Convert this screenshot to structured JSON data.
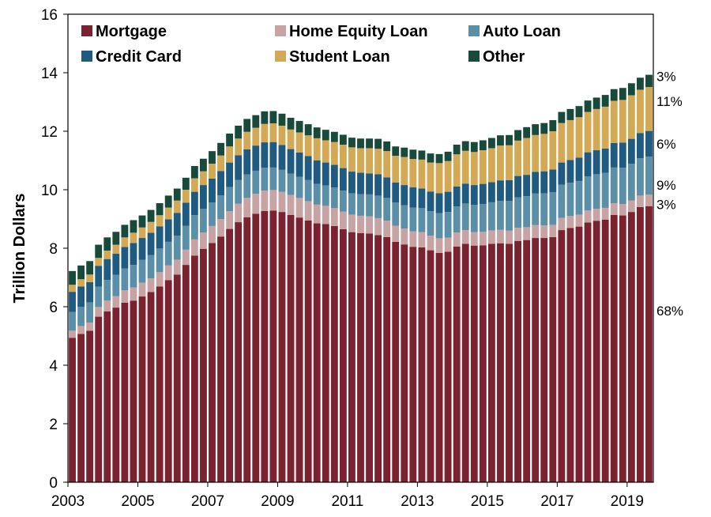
{
  "chart_data": {
    "type": "bar",
    "stacked": true,
    "ylabel": "Trillion Dollars",
    "ylim": [
      0,
      16
    ],
    "yticks": [
      0,
      2,
      4,
      6,
      8,
      10,
      12,
      14,
      16
    ],
    "xticks": [
      "2003",
      "2005",
      "2007",
      "2009",
      "2011",
      "2013",
      "2015",
      "2017",
      "2019"
    ],
    "legend_position": "top",
    "grid": false,
    "colors": {
      "Mortgage": "#7B2230",
      "Home Equity Loan": "#C8A3A3",
      "Auto Loan": "#5B8FA8",
      "Credit Card": "#1F5A80",
      "Student Loan": "#D4A955",
      "Other": "#174A3A"
    },
    "categories": [
      "2003Q1",
      "2003Q2",
      "2003Q3",
      "2003Q4",
      "2004Q1",
      "2004Q2",
      "2004Q3",
      "2004Q4",
      "2005Q1",
      "2005Q2",
      "2005Q3",
      "2005Q4",
      "2006Q1",
      "2006Q2",
      "2006Q3",
      "2006Q4",
      "2007Q1",
      "2007Q2",
      "2007Q3",
      "2007Q4",
      "2008Q1",
      "2008Q2",
      "2008Q3",
      "2008Q4",
      "2009Q1",
      "2009Q2",
      "2009Q3",
      "2009Q4",
      "2010Q1",
      "2010Q2",
      "2010Q3",
      "2010Q4",
      "2011Q1",
      "2011Q2",
      "2011Q3",
      "2011Q4",
      "2012Q1",
      "2012Q2",
      "2012Q3",
      "2012Q4",
      "2013Q1",
      "2013Q2",
      "2013Q3",
      "2013Q4",
      "2014Q1",
      "2014Q2",
      "2014Q3",
      "2014Q4",
      "2015Q1",
      "2015Q2",
      "2015Q3",
      "2015Q4",
      "2016Q1",
      "2016Q2",
      "2016Q3",
      "2016Q4",
      "2017Q1",
      "2017Q2",
      "2017Q3",
      "2017Q4",
      "2018Q1",
      "2018Q2",
      "2018Q3",
      "2018Q4",
      "2019Q1",
      "2019Q2",
      "2019Q3"
    ],
    "series": [
      {
        "name": "Mortgage",
        "values": [
          4.94,
          5.07,
          5.18,
          5.66,
          5.84,
          5.97,
          6.14,
          6.21,
          6.35,
          6.5,
          6.69,
          6.91,
          7.1,
          7.43,
          7.75,
          7.98,
          8.18,
          8.4,
          8.66,
          8.89,
          9.06,
          9.18,
          9.27,
          9.29,
          9.24,
          9.14,
          9.05,
          8.95,
          8.85,
          8.83,
          8.76,
          8.65,
          8.55,
          8.52,
          8.5,
          8.45,
          8.38,
          8.22,
          8.13,
          8.05,
          8.03,
          7.93,
          7.84,
          7.88,
          8.06,
          8.15,
          8.09,
          8.1,
          8.15,
          8.17,
          8.15,
          8.25,
          8.28,
          8.35,
          8.35,
          8.38,
          8.62,
          8.69,
          8.74,
          8.88,
          8.94,
          8.98,
          9.14,
          9.12,
          9.24,
          9.41,
          9.44
        ]
      },
      {
        "name": "Home Equity Loan",
        "values": [
          0.24,
          0.27,
          0.28,
          0.33,
          0.37,
          0.39,
          0.42,
          0.45,
          0.47,
          0.47,
          0.49,
          0.5,
          0.51,
          0.52,
          0.55,
          0.56,
          0.58,
          0.6,
          0.61,
          0.63,
          0.66,
          0.68,
          0.7,
          0.7,
          0.69,
          0.68,
          0.67,
          0.66,
          0.64,
          0.62,
          0.61,
          0.6,
          0.6,
          0.59,
          0.59,
          0.58,
          0.56,
          0.55,
          0.54,
          0.53,
          0.52,
          0.5,
          0.5,
          0.48,
          0.48,
          0.47,
          0.46,
          0.46,
          0.46,
          0.46,
          0.45,
          0.45,
          0.44,
          0.44,
          0.43,
          0.42,
          0.42,
          0.41,
          0.41,
          0.41,
          0.41,
          0.4,
          0.4,
          0.39,
          0.39,
          0.39,
          0.39
        ]
      },
      {
        "name": "Auto Loan",
        "values": [
          0.64,
          0.66,
          0.69,
          0.7,
          0.71,
          0.73,
          0.75,
          0.77,
          0.78,
          0.8,
          0.81,
          0.81,
          0.82,
          0.82,
          0.83,
          0.81,
          0.8,
          0.81,
          0.82,
          0.81,
          0.8,
          0.79,
          0.78,
          0.77,
          0.75,
          0.73,
          0.72,
          0.72,
          0.71,
          0.7,
          0.71,
          0.72,
          0.73,
          0.74,
          0.75,
          0.77,
          0.78,
          0.79,
          0.8,
          0.81,
          0.82,
          0.84,
          0.86,
          0.88,
          0.89,
          0.91,
          0.93,
          0.95,
          0.96,
          0.99,
          1.02,
          1.04,
          1.06,
          1.08,
          1.1,
          1.12,
          1.13,
          1.14,
          1.15,
          1.17,
          1.18,
          1.2,
          1.22,
          1.24,
          1.26,
          1.28,
          1.3
        ]
      },
      {
        "name": "Credit Card",
        "values": [
          0.69,
          0.69,
          0.69,
          0.71,
          0.71,
          0.72,
          0.73,
          0.75,
          0.75,
          0.76,
          0.76,
          0.77,
          0.78,
          0.79,
          0.8,
          0.81,
          0.82,
          0.83,
          0.84,
          0.85,
          0.86,
          0.86,
          0.87,
          0.87,
          0.85,
          0.84,
          0.83,
          0.82,
          0.8,
          0.78,
          0.77,
          0.77,
          0.74,
          0.73,
          0.72,
          0.73,
          0.7,
          0.69,
          0.69,
          0.69,
          0.67,
          0.67,
          0.68,
          0.69,
          0.68,
          0.68,
          0.68,
          0.69,
          0.69,
          0.7,
          0.71,
          0.73,
          0.73,
          0.74,
          0.75,
          0.77,
          0.76,
          0.78,
          0.8,
          0.82,
          0.82,
          0.83,
          0.84,
          0.86,
          0.85,
          0.86,
          0.88
        ]
      },
      {
        "name": "Student Loan",
        "values": [
          0.24,
          0.25,
          0.26,
          0.27,
          0.29,
          0.31,
          0.33,
          0.35,
          0.36,
          0.37,
          0.38,
          0.4,
          0.42,
          0.44,
          0.46,
          0.47,
          0.51,
          0.53,
          0.55,
          0.57,
          0.6,
          0.61,
          0.63,
          0.64,
          0.66,
          0.67,
          0.69,
          0.71,
          0.76,
          0.76,
          0.78,
          0.8,
          0.83,
          0.84,
          0.86,
          0.87,
          0.9,
          0.91,
          0.96,
          0.97,
          0.99,
          0.99,
          1.03,
          1.05,
          1.1,
          1.12,
          1.13,
          1.15,
          1.16,
          1.19,
          1.19,
          1.21,
          1.26,
          1.26,
          1.28,
          1.31,
          1.35,
          1.36,
          1.38,
          1.38,
          1.41,
          1.43,
          1.44,
          1.46,
          1.49,
          1.48,
          1.5
        ]
      },
      {
        "name": "Other",
        "values": [
          0.47,
          0.47,
          0.46,
          0.45,
          0.45,
          0.44,
          0.43,
          0.43,
          0.41,
          0.41,
          0.41,
          0.41,
          0.41,
          0.41,
          0.42,
          0.43,
          0.43,
          0.43,
          0.44,
          0.44,
          0.44,
          0.43,
          0.43,
          0.42,
          0.41,
          0.4,
          0.39,
          0.38,
          0.37,
          0.36,
          0.35,
          0.34,
          0.33,
          0.33,
          0.33,
          0.34,
          0.33,
          0.32,
          0.32,
          0.32,
          0.31,
          0.31,
          0.31,
          0.32,
          0.33,
          0.33,
          0.34,
          0.34,
          0.35,
          0.35,
          0.35,
          0.36,
          0.37,
          0.37,
          0.37,
          0.38,
          0.38,
          0.38,
          0.38,
          0.39,
          0.39,
          0.4,
          0.4,
          0.41,
          0.41,
          0.41,
          0.42
        ]
      }
    ],
    "annotations": [
      "3%",
      "11%",
      "6%",
      "9%",
      "3%",
      "68%"
    ]
  }
}
